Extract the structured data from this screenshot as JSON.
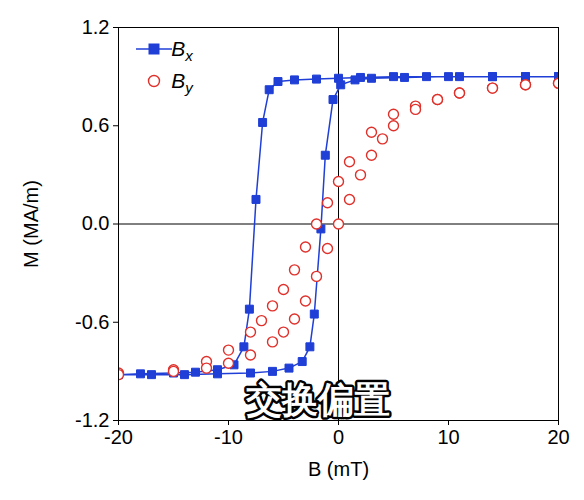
{
  "chart_data": {
    "type": "line",
    "x_label": "B (mT)",
    "y_label": "M (MA/m)",
    "annotations": [
      "交换偏置"
    ],
    "xlim": [
      -20,
      20
    ],
    "xticks": [
      -20,
      -10,
      0,
      10,
      20
    ],
    "ylim": [
      -1.2,
      1.2
    ],
    "yticks": [
      -1.2,
      -0.6,
      {
        "value": 0,
        "label": "0.0"
      },
      0.6,
      1.2
    ],
    "legend": "top-left",
    "series": [
      {
        "name": "Bx",
        "color": "#1f3fd6",
        "marker": "square",
        "line_style": "solid",
        "x": [
          20,
          17,
          14,
          11,
          8,
          5,
          2,
          0,
          -2,
          -4,
          -5.5,
          -6.3,
          -6.9,
          -7.5,
          -8.1,
          -8.6,
          -9.5,
          -11,
          -13,
          -15,
          -18,
          -20,
          -17,
          -14,
          -11,
          -8,
          -6,
          -4.5,
          -3.3,
          -2.6,
          -2.2,
          -1.6,
          -1.2,
          -0.5,
          0.2,
          1.5,
          3,
          6,
          10,
          14,
          17,
          20
        ],
        "values": [
          0.9,
          0.9,
          0.9,
          0.9,
          0.9,
          0.9,
          0.895,
          0.89,
          0.885,
          0.88,
          0.87,
          0.82,
          0.62,
          0.15,
          -0.52,
          -0.75,
          -0.86,
          -0.89,
          -0.905,
          -0.91,
          -0.915,
          -0.92,
          -0.92,
          -0.92,
          -0.915,
          -0.91,
          -0.9,
          -0.88,
          -0.84,
          -0.75,
          -0.55,
          -0.03,
          0.42,
          0.76,
          0.85,
          0.88,
          0.89,
          0.895,
          0.9,
          0.9,
          0.9,
          0.9
        ]
      },
      {
        "name": "By",
        "color": "#e0302a",
        "marker": "open_circle",
        "line_style": "none",
        "x": [
          20,
          17,
          14,
          11,
          9,
          7,
          5,
          3,
          1,
          0,
          -1,
          -2,
          -3,
          -4,
          -5,
          -6,
          -7,
          -8,
          -10,
          -12,
          -15,
          -20,
          -20,
          -15,
          -12,
          -10,
          -8,
          -6,
          -5,
          -4,
          -3,
          -2,
          -1,
          0,
          1,
          2,
          3,
          4,
          5,
          7,
          9,
          11,
          14,
          17,
          20
        ],
        "values": [
          0.86,
          0.85,
          0.83,
          0.8,
          0.76,
          0.72,
          0.67,
          0.56,
          0.38,
          0.26,
          0.13,
          0.0,
          -0.14,
          -0.28,
          -0.4,
          -0.5,
          -0.59,
          -0.66,
          -0.77,
          -0.84,
          -0.89,
          -0.91,
          -0.92,
          -0.9,
          -0.88,
          -0.85,
          -0.8,
          -0.72,
          -0.66,
          -0.58,
          -0.47,
          -0.32,
          -0.15,
          0.0,
          0.15,
          0.3,
          0.42,
          0.52,
          0.6,
          0.7,
          0.76,
          0.8,
          0.83,
          0.85,
          0.86
        ]
      }
    ]
  }
}
